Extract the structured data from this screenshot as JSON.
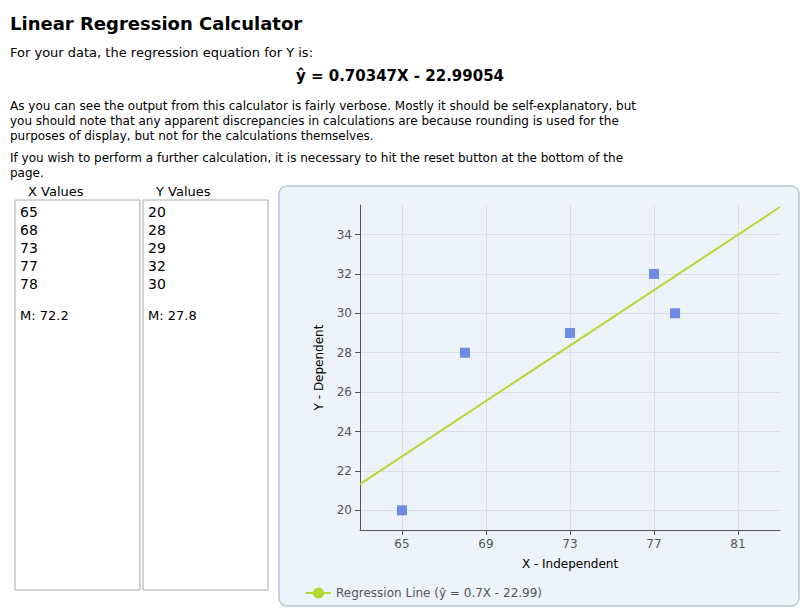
{
  "chart_data": {
    "type": "scatter",
    "title": "Linear Regression Calculator",
    "subtitle": "For your data, the regression equation for Y is:",
    "annotations": [
      "ŷ = 0.70347X - 22.99054",
      "As you can see the output from this calculator is fairly verbose. Mostly it should be self-explanatory, but",
      "you should note that any apparent discrepancies in calculations are because rounding is used for the",
      "purposes of display, but not for the calculations themselves.",
      "If you wish to perform a further calculation, it is necessary to hit the reset button at the bottom of the",
      "page."
    ],
    "table": {
      "headers": [
        "X Values",
        "Y Values"
      ],
      "means": [
        "M: 72.2",
        "M: 27.8"
      ]
    },
    "x_label": "X - Independent",
    "y_label": "Y - Dependent",
    "series": [
      {
        "type": "scatter",
        "marker": "square",
        "x": [
          65,
          68,
          73,
          77,
          78
        ],
        "values": [
          20,
          28,
          29,
          32,
          30
        ]
      },
      {
        "name": "Regression Line (ŷ = 0.7X - 22.99)",
        "type": "line",
        "x": [
          63,
          83
        ],
        "values": [
          21.32807,
          35.39747
        ]
      }
    ],
    "xlim": [
      63,
      83
    ],
    "xticks": [
      65,
      69,
      73,
      77,
      81
    ],
    "ylim": [
      19.0,
      35.5
    ],
    "yticks": [
      20,
      22,
      24,
      26,
      28,
      30,
      32,
      34
    ],
    "grid": true,
    "legend": "lower left"
  }
}
